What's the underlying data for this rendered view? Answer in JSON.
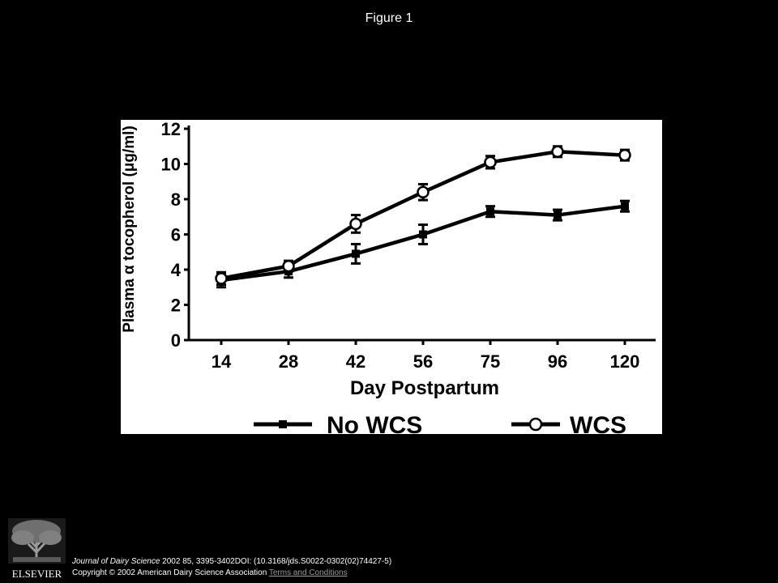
{
  "header": {
    "figure_title": "Figure 1"
  },
  "chart_data": {
    "type": "line",
    "title": "",
    "xlabel": "Day Postpartum",
    "ylabel": "Plasma α tocopherol (μg/ml)",
    "categories": [
      "14",
      "28",
      "42",
      "56",
      "75",
      "96",
      "120"
    ],
    "ylim": [
      0,
      12
    ],
    "yticks": [
      "0",
      "2",
      "4",
      "6",
      "8",
      "10",
      "12"
    ],
    "grid": false,
    "legend_position": "bottom",
    "series": [
      {
        "name": "No WCS",
        "marker": "filled-square",
        "values": [
          3.4,
          3.9,
          4.9,
          6.0,
          7.3,
          7.1,
          7.6
        ],
        "errors": [
          0.4,
          0.35,
          0.55,
          0.55,
          0.3,
          0.3,
          0.3
        ]
      },
      {
        "name": "WCS",
        "marker": "open-circle",
        "values": [
          3.5,
          4.2,
          6.6,
          8.4,
          10.1,
          10.7,
          10.5
        ],
        "errors": [
          0.35,
          0.3,
          0.5,
          0.45,
          0.35,
          0.3,
          0.3
        ]
      }
    ]
  },
  "footer": {
    "publisher_logo_text": "ELSEVIER",
    "journal": "Journal of Dairy Science",
    "citation": " 2002 85, 3395-3402DOI: (10.3168/jds.S0022-0302(02)74427-5)",
    "copyright": "Copyright © 2002 American Dairy Science Association ",
    "terms_link": "Terms and Conditions",
    "colors": {
      "background": "#000000",
      "link": "#9a9a9a"
    }
  }
}
